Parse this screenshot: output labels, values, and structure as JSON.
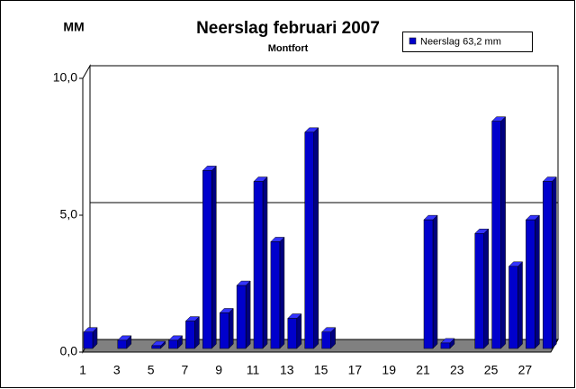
{
  "chart_data": {
    "type": "bar",
    "title": "Neerslag februari 2007",
    "subtitle": "Montfort",
    "y_label": "MM",
    "categories": [
      "1",
      null,
      "3",
      null,
      "5",
      null,
      "7",
      null,
      "9",
      null,
      "11",
      null,
      "13",
      null,
      "15",
      null,
      "17",
      null,
      "19",
      null,
      "21",
      null,
      "23",
      null,
      "25",
      null,
      "27",
      null
    ],
    "series": [
      {
        "name": "Neerslag 63,2 mm",
        "color": "#0000cc",
        "values": [
          0.6,
          0,
          0.3,
          0,
          0.1,
          0.3,
          1.0,
          6.5,
          1.3,
          2.3,
          6.1,
          3.9,
          1.1,
          7.9,
          0.6,
          0,
          0,
          0,
          0,
          0,
          4.7,
          0.2,
          0,
          4.2,
          8.3,
          3.0,
          4.7,
          6.1
        ]
      }
    ],
    "ylim": [
      0,
      10
    ],
    "yticks": [
      {
        "value": 0,
        "label": "0,0"
      },
      {
        "value": 5,
        "label": "5,0"
      },
      {
        "value": 10,
        "label": "10,0"
      }
    ],
    "grid": true,
    "legend": "top-right"
  }
}
